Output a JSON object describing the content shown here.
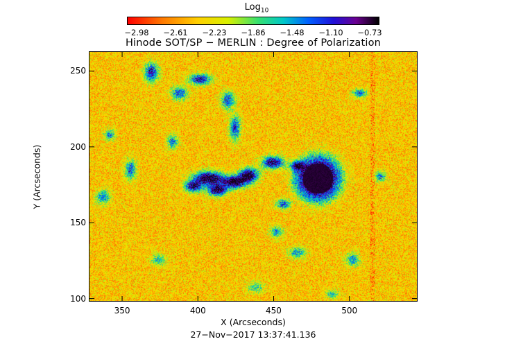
{
  "colorbar": {
    "title": "Log",
    "title_sub": "10",
    "ticks": [
      "−2.98",
      "−2.61",
      "−2.23",
      "−1.86",
      "−1.48",
      "−1.10",
      "−0.73"
    ],
    "range": [
      -2.98,
      -0.73
    ]
  },
  "title": "Hinode SOT/SP − MERLIN : Degree of Polarization",
  "axes": {
    "xlabel": "X (Arcseconds)",
    "ylabel": "Y (Arcseconds)",
    "xticks": [
      "350",
      "400",
      "450",
      "500"
    ],
    "yticks": [
      "250",
      "200",
      "150",
      "100"
    ],
    "xlim": [
      328,
      545
    ],
    "ylim": [
      98,
      263
    ]
  },
  "timestamp": "27−Nov−2017 13:37:41.136",
  "colors": {
    "background_field": "#f2a623",
    "network": "#1838d8",
    "umbra": "#240a5a"
  }
}
